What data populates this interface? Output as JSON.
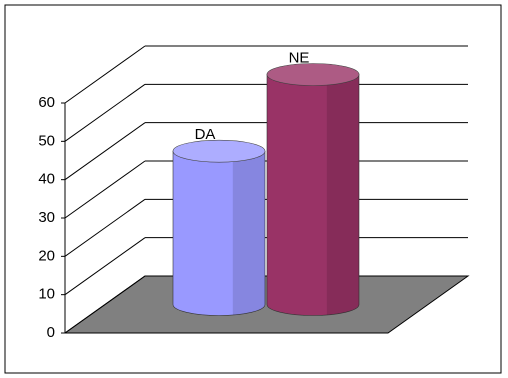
{
  "chart_data": {
    "type": "bar",
    "categories": [
      "DA",
      "NE"
    ],
    "values": [
      40,
      60
    ],
    "colors": [
      "#9999ff",
      "#993366"
    ],
    "ylim": [
      0,
      60
    ],
    "yticks": [
      0,
      10,
      20,
      30,
      40,
      50,
      60
    ],
    "grid": true
  }
}
